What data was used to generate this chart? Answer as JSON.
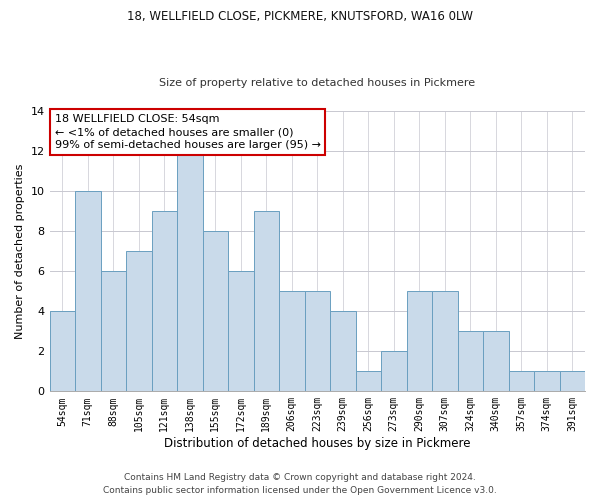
{
  "title1": "18, WELLFIELD CLOSE, PICKMERE, KNUTSFORD, WA16 0LW",
  "title2": "Size of property relative to detached houses in Pickmere",
  "xlabel": "Distribution of detached houses by size in Pickmere",
  "ylabel": "Number of detached properties",
  "footnote1": "Contains HM Land Registry data © Crown copyright and database right 2024.",
  "footnote2": "Contains public sector information licensed under the Open Government Licence v3.0.",
  "annotation_title": "18 WELLFIELD CLOSE: 54sqm",
  "annotation_line1": "← <1% of detached houses are smaller (0)",
  "annotation_line2": "99% of semi-detached houses are larger (95) →",
  "bar_labels": [
    "54sqm",
    "71sqm",
    "88sqm",
    "105sqm",
    "121sqm",
    "138sqm",
    "155sqm",
    "172sqm",
    "189sqm",
    "206sqm",
    "223sqm",
    "239sqm",
    "256sqm",
    "273sqm",
    "290sqm",
    "307sqm",
    "324sqm",
    "340sqm",
    "357sqm",
    "374sqm",
    "391sqm"
  ],
  "bar_values": [
    4,
    10,
    6,
    7,
    9,
    12,
    8,
    6,
    9,
    5,
    5,
    4,
    1,
    2,
    5,
    5,
    3,
    3,
    1,
    1,
    1
  ],
  "bar_color": "#c9daea",
  "bar_edgecolor": "#6a9fc0",
  "annotation_box_edgecolor": "#cc0000",
  "background_color": "#ffffff",
  "grid_color": "#c8c8d0",
  "ylim": [
    0,
    14
  ],
  "yticks": [
    0,
    2,
    4,
    6,
    8,
    10,
    12,
    14
  ],
  "title1_fontsize": 8.5,
  "title2_fontsize": 8.0,
  "ylabel_fontsize": 8.0,
  "xlabel_fontsize": 8.5,
  "tick_fontsize": 8.0,
  "annot_fontsize": 8.0,
  "footer_fontsize": 6.5
}
